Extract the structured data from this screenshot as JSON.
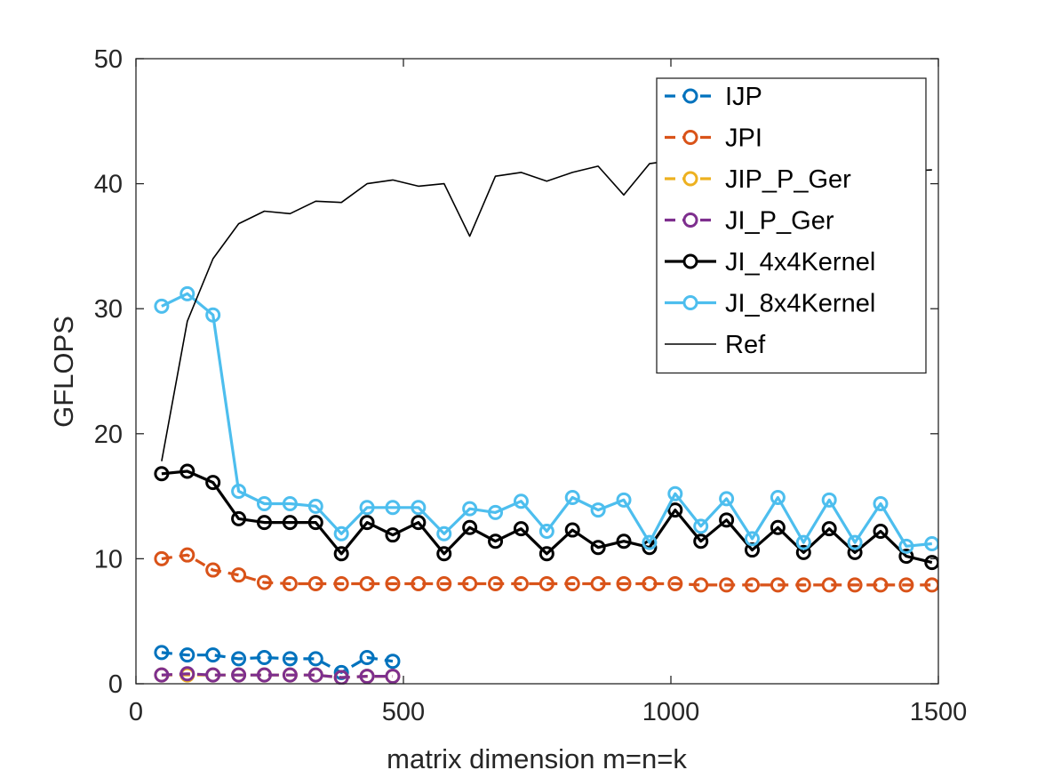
{
  "chart_data": {
    "type": "line",
    "title": "",
    "xlabel": "matrix dimension m=n=k",
    "ylabel": "GFLOPS",
    "xlim": [
      0,
      1500
    ],
    "ylim": [
      0,
      50
    ],
    "xticks": [
      0,
      500,
      1000,
      1500
    ],
    "yticks": [
      0,
      10,
      20,
      30,
      40,
      50
    ],
    "grid": false,
    "legend_position": "top-right",
    "series": [
      {
        "name": "IJP",
        "color": "#0072BD",
        "line_style": "dashed",
        "marker": "circle",
        "x": [
          48,
          96,
          144,
          192,
          240,
          288,
          336,
          384,
          432,
          480
        ],
        "y": [
          2.5,
          2.3,
          2.3,
          2.0,
          2.1,
          2.0,
          2.0,
          0.9,
          2.1,
          1.8
        ]
      },
      {
        "name": "JPI",
        "color": "#D95319",
        "line_style": "dashed",
        "marker": "circle",
        "x": [
          48,
          96,
          144,
          192,
          240,
          288,
          336,
          384,
          432,
          480,
          528,
          576,
          624,
          672,
          720,
          768,
          816,
          864,
          912,
          960,
          1008,
          1056,
          1104,
          1152,
          1200,
          1248,
          1296,
          1344,
          1392,
          1440,
          1488
        ],
        "y": [
          10.0,
          10.3,
          9.1,
          8.7,
          8.1,
          8.0,
          8.0,
          8.0,
          8.0,
          8.0,
          8.0,
          8.0,
          8.0,
          8.0,
          8.0,
          8.0,
          8.0,
          8.0,
          8.0,
          8.0,
          8.0,
          7.9,
          7.9,
          7.9,
          7.9,
          7.9,
          7.9,
          7.9,
          7.9,
          7.9,
          7.9
        ]
      },
      {
        "name": "JIP_P_Ger",
        "color": "#EDB120",
        "line_style": "dashed",
        "marker": "circle",
        "x": [
          48,
          96,
          144,
          192,
          240,
          288,
          336,
          384,
          432,
          480
        ],
        "y": [
          0.7,
          0.7,
          0.7,
          0.7,
          0.7,
          0.7,
          0.7,
          0.5,
          0.6,
          0.6
        ]
      },
      {
        "name": "JI_P_Ger",
        "color": "#7E2F8E",
        "line_style": "dashed",
        "marker": "circle",
        "x": [
          48,
          96,
          144,
          192,
          240,
          288,
          336,
          384,
          432,
          480
        ],
        "y": [
          0.7,
          0.8,
          0.7,
          0.7,
          0.7,
          0.7,
          0.7,
          0.5,
          0.6,
          0.6
        ]
      },
      {
        "name": "JI_4x4Kernel",
        "color": "#000000",
        "line_style": "solid",
        "marker": "circle",
        "x": [
          48,
          96,
          144,
          192,
          240,
          288,
          336,
          384,
          432,
          480,
          528,
          576,
          624,
          672,
          720,
          768,
          816,
          864,
          912,
          960,
          1008,
          1056,
          1104,
          1152,
          1200,
          1248,
          1296,
          1344,
          1392,
          1440,
          1488
        ],
        "y": [
          16.8,
          17.0,
          16.1,
          13.2,
          12.9,
          12.9,
          12.9,
          10.4,
          12.9,
          11.9,
          12.9,
          10.4,
          12.5,
          11.4,
          12.4,
          10.4,
          12.3,
          10.9,
          11.4,
          10.9,
          13.9,
          11.4,
          13.1,
          10.7,
          12.5,
          10.5,
          12.4,
          10.5,
          12.2,
          10.2,
          9.7
        ]
      },
      {
        "name": "JI_8x4Kernel",
        "color": "#4DBEEE",
        "line_style": "solid",
        "marker": "circle",
        "x": [
          48,
          96,
          144,
          192,
          240,
          288,
          336,
          384,
          432,
          480,
          528,
          576,
          624,
          672,
          720,
          768,
          816,
          864,
          912,
          960,
          1008,
          1056,
          1104,
          1152,
          1200,
          1248,
          1296,
          1344,
          1392,
          1440,
          1488
        ],
        "y": [
          30.2,
          31.2,
          29.5,
          15.4,
          14.4,
          14.4,
          14.2,
          12.0,
          14.1,
          14.1,
          14.1,
          12.0,
          14.0,
          13.7,
          14.6,
          12.2,
          14.9,
          13.9,
          14.7,
          11.3,
          15.2,
          12.6,
          14.8,
          11.6,
          14.9,
          11.3,
          14.7,
          11.3,
          14.4,
          11.0,
          11.2
        ]
      },
      {
        "name": "Ref",
        "color": "#000000",
        "line_style": "solid",
        "marker": "none",
        "x": [
          48,
          96,
          144,
          192,
          240,
          288,
          336,
          384,
          432,
          480,
          528,
          576,
          624,
          672,
          720,
          768,
          816,
          864,
          912,
          960,
          1008,
          1056,
          1104,
          1152,
          1200,
          1248,
          1296,
          1344,
          1392,
          1440,
          1488
        ],
        "y": [
          17.8,
          29.0,
          34.0,
          36.8,
          37.8,
          37.6,
          38.6,
          38.5,
          40.0,
          40.3,
          39.8,
          40.0,
          35.8,
          40.6,
          40.9,
          40.2,
          40.9,
          41.4,
          39.1,
          41.6,
          41.9,
          41.3,
          41.6,
          41.1,
          41.2,
          41.0,
          41.2,
          41.0,
          41.3,
          41.0,
          41.1
        ]
      }
    ]
  }
}
